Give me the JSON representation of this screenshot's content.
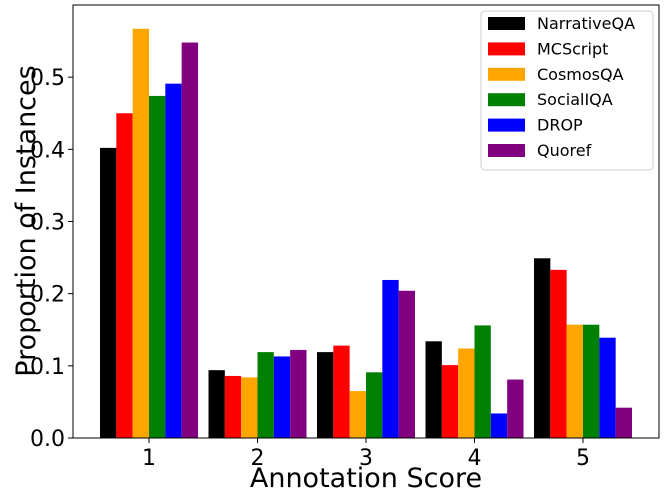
{
  "chart_data": {
    "type": "bar",
    "xlabel": "Annotation Score",
    "ylabel": "Proportion of Instances",
    "categories": [
      "1",
      "2",
      "3",
      "4",
      "5"
    ],
    "ylim": [
      0,
      0.6
    ],
    "yticks": [
      "0.0",
      "0.1",
      "0.2",
      "0.3",
      "0.4",
      "0.5"
    ],
    "grid": false,
    "legend_position": "top-right",
    "series": [
      {
        "name": "NarrativeQA",
        "color": "#000000",
        "values": [
          0.402,
          0.094,
          0.119,
          0.134,
          0.249
        ]
      },
      {
        "name": "MCScript",
        "color": "#ff0000",
        "values": [
          0.45,
          0.086,
          0.128,
          0.101,
          0.233
        ]
      },
      {
        "name": "CosmosQA",
        "color": "#ffa500",
        "values": [
          0.567,
          0.084,
          0.065,
          0.124,
          0.157
        ]
      },
      {
        "name": "SocialIQA",
        "color": "#008000",
        "values": [
          0.474,
          0.119,
          0.091,
          0.156,
          0.157
        ]
      },
      {
        "name": "DROP",
        "color": "#0000ff",
        "values": [
          0.491,
          0.113,
          0.219,
          0.034,
          0.139
        ]
      },
      {
        "name": "Quoref",
        "color": "#800080",
        "values": [
          0.548,
          0.122,
          0.204,
          0.081,
          0.042
        ]
      }
    ]
  }
}
